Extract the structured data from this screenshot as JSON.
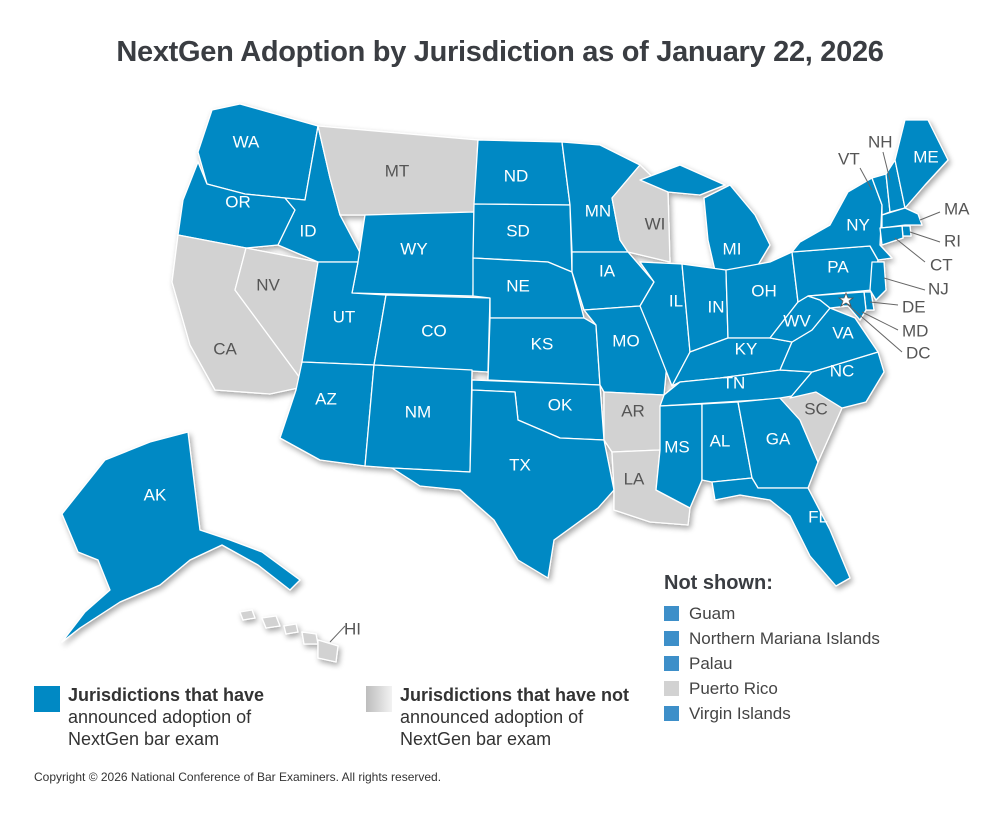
{
  "title": "NextGen Adoption by Jurisdiction as of January 22, 2026",
  "colors": {
    "adopted": "#0089c4",
    "not_adopted": "#d2d2d2",
    "text": "#333333"
  },
  "states": [
    {
      "abbr": "WA",
      "status": "adopted"
    },
    {
      "abbr": "OR",
      "status": "adopted"
    },
    {
      "abbr": "CA",
      "status": "not_adopted"
    },
    {
      "abbr": "NV",
      "status": "not_adopted"
    },
    {
      "abbr": "ID",
      "status": "adopted"
    },
    {
      "abbr": "MT",
      "status": "not_adopted"
    },
    {
      "abbr": "WY",
      "status": "adopted"
    },
    {
      "abbr": "UT",
      "status": "adopted"
    },
    {
      "abbr": "AZ",
      "status": "adopted"
    },
    {
      "abbr": "CO",
      "status": "adopted"
    },
    {
      "abbr": "NM",
      "status": "adopted"
    },
    {
      "abbr": "ND",
      "status": "adopted"
    },
    {
      "abbr": "SD",
      "status": "adopted"
    },
    {
      "abbr": "NE",
      "status": "adopted"
    },
    {
      "abbr": "KS",
      "status": "adopted"
    },
    {
      "abbr": "OK",
      "status": "adopted"
    },
    {
      "abbr": "TX",
      "status": "adopted"
    },
    {
      "abbr": "MN",
      "status": "adopted"
    },
    {
      "abbr": "IA",
      "status": "adopted"
    },
    {
      "abbr": "MO",
      "status": "adopted"
    },
    {
      "abbr": "AR",
      "status": "not_adopted"
    },
    {
      "abbr": "LA",
      "status": "not_adopted"
    },
    {
      "abbr": "WI",
      "status": "not_adopted"
    },
    {
      "abbr": "IL",
      "status": "adopted"
    },
    {
      "abbr": "MI",
      "status": "adopted"
    },
    {
      "abbr": "IN",
      "status": "adopted"
    },
    {
      "abbr": "OH",
      "status": "adopted"
    },
    {
      "abbr": "KY",
      "status": "adopted"
    },
    {
      "abbr": "TN",
      "status": "adopted"
    },
    {
      "abbr": "MS",
      "status": "adopted"
    },
    {
      "abbr": "AL",
      "status": "adopted"
    },
    {
      "abbr": "GA",
      "status": "adopted"
    },
    {
      "abbr": "FL",
      "status": "adopted"
    },
    {
      "abbr": "SC",
      "status": "not_adopted"
    },
    {
      "abbr": "NC",
      "status": "adopted"
    },
    {
      "abbr": "VA",
      "status": "adopted"
    },
    {
      "abbr": "WV",
      "status": "adopted"
    },
    {
      "abbr": "PA",
      "status": "adopted"
    },
    {
      "abbr": "NY",
      "status": "adopted"
    },
    {
      "abbr": "VT",
      "status": "adopted"
    },
    {
      "abbr": "NH",
      "status": "adopted"
    },
    {
      "abbr": "ME",
      "status": "adopted"
    },
    {
      "abbr": "MA",
      "status": "adopted"
    },
    {
      "abbr": "RI",
      "status": "adopted"
    },
    {
      "abbr": "CT",
      "status": "adopted"
    },
    {
      "abbr": "NJ",
      "status": "adopted"
    },
    {
      "abbr": "DE",
      "status": "adopted"
    },
    {
      "abbr": "MD",
      "status": "adopted"
    },
    {
      "abbr": "DC",
      "status": "adopted"
    },
    {
      "abbr": "AK",
      "status": "adopted"
    },
    {
      "abbr": "HI",
      "status": "not_adopted"
    }
  ],
  "legend": {
    "adopted": {
      "bold": "Jurisdictions that have",
      "rest": "announced adoption of NextGen bar exam"
    },
    "not_adopted": {
      "bold": "Jurisdictions that have not",
      "rest": "announced adoption of NextGen bar exam"
    }
  },
  "not_shown": {
    "title": "Not shown:",
    "items": [
      {
        "name": "Guam",
        "status": "adopted"
      },
      {
        "name": "Northern Mariana Islands",
        "status": "adopted"
      },
      {
        "name": "Palau",
        "status": "adopted"
      },
      {
        "name": "Puerto Rico",
        "status": "not_adopted"
      },
      {
        "name": "Virgin Islands",
        "status": "adopted"
      }
    ]
  },
  "copyright": "Copyright © 2026 National Conference of Bar Examiners. All rights reserved."
}
